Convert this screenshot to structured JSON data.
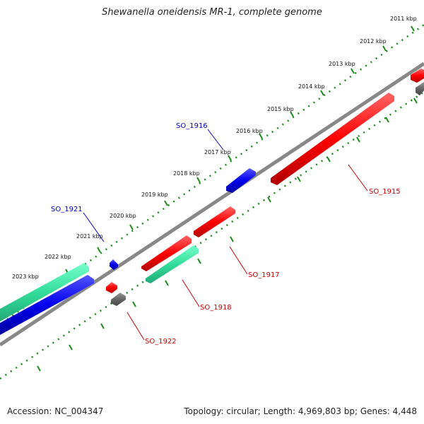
{
  "title": "Shewanella oneidensis MR-1, complete genome",
  "footer": {
    "accession": "Accession: NC_004347",
    "summary": "Topology: circular; Length: 4,969,803 bp; Genes: 4,448"
  },
  "colors": {
    "background": "#ffffff",
    "backbone": "#888888",
    "ruler_dots": "#1a8a1a",
    "forward_gene": "#ff0000",
    "reverse_gene": "#0000ee",
    "rna_gene": "#33dd99",
    "other_gene": "#666666",
    "label_red": "#cc0000",
    "label_blue": "#0000cc"
  },
  "scale_labels": [
    "2011 kbp",
    "2012 kbp",
    "2013 kbp",
    "2014 kbp",
    "2015 kbp",
    "2016 kbp",
    "2017 kbp",
    "2018 kbp",
    "2019 kbp",
    "2020 kbp",
    "2021 kbp",
    "2022 kbp",
    "2023 kbp"
  ],
  "gene_labels": [
    {
      "id": "so1915",
      "text": "SO_1915",
      "color": "#cc0000"
    },
    {
      "id": "so1916",
      "text": "SO_1916",
      "color": "#0000cc"
    },
    {
      "id": "so1917",
      "text": "SO_1917",
      "color": "#cc0000"
    },
    {
      "id": "so1918",
      "text": "SO_1918",
      "color": "#cc0000"
    },
    {
      "id": "so1921",
      "text": "SO_1921",
      "color": "#0000cc"
    },
    {
      "id": "so1922",
      "text": "SO_1922",
      "color": "#cc0000"
    }
  ]
}
